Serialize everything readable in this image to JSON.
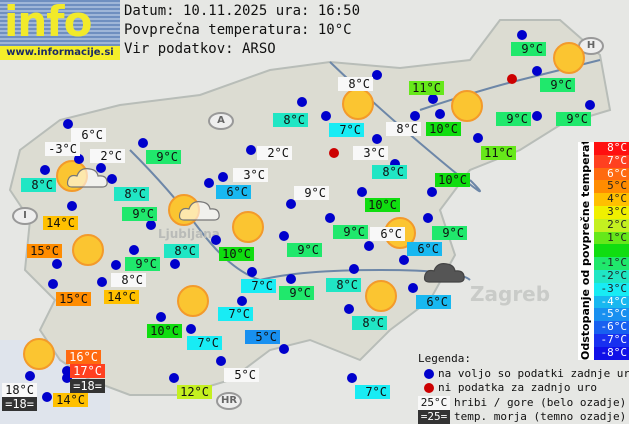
{
  "header": {
    "logo_text": "info",
    "logo_url": "www.informacije.si",
    "date_line": "Datum: 10.11.2025 ura: 16:50",
    "avg_line": "Povprečna temperatura: 10°C",
    "source_line": "Vir podatkov: ARSO"
  },
  "map_labels": {
    "ljubljana": "Ljubljana",
    "zagreb": "Zagreb",
    "austria": "A",
    "italy": "I",
    "croatia": "HR",
    "hungary": "H"
  },
  "colors": {
    "mountain": "#f8f8f8",
    "sea": "#333333",
    "station_available": "#0000cc",
    "station_no_data": "#cc0000",
    "d-5": "#1890f0",
    "d-4": "#18b8f0",
    "d-3": "#18ecf4",
    "d-2": "#20e6c4",
    "d-1": "#20e86c",
    "d0": "#10dd10",
    "d1": "#66e81a",
    "d2": "#c4f020",
    "d4": "#ffc000",
    "d5": "#ff8c00",
    "d6": "#ff6a10",
    "d7": "#ff4020"
  },
  "stations": [
    {
      "t": "6°C",
      "c": "mountain"
    },
    {
      "t": "-3°C",
      "c": "mountain"
    },
    {
      "t": "2°C",
      "c": "mountain"
    },
    {
      "t": "8°C",
      "c": "d-2"
    },
    {
      "t": "8°C",
      "c": "d-2"
    },
    {
      "t": "9°C",
      "c": "d-1"
    },
    {
      "t": "2°C",
      "c": "mountain"
    },
    {
      "t": "3°C",
      "c": "mountain"
    },
    {
      "t": "6°C",
      "c": "d-4"
    },
    {
      "t": "9°C",
      "c": "mountain"
    },
    {
      "t": "10°C",
      "c": "d0"
    },
    {
      "t": "10°C",
      "c": "d0"
    },
    {
      "t": "8°C",
      "c": "d-2"
    },
    {
      "t": "3°C",
      "c": "mountain"
    },
    {
      "t": "8°C",
      "c": "mountain"
    },
    {
      "t": "10°C",
      "c": "d0"
    },
    {
      "t": "11°C",
      "c": "d1"
    },
    {
      "t": "8°C",
      "c": "mountain"
    },
    {
      "t": "8°C",
      "c": "d-2"
    },
    {
      "t": "7°C",
      "c": "d-3"
    },
    {
      "t": "11°C",
      "c": "d1"
    },
    {
      "t": "9°C",
      "c": "d-1"
    },
    {
      "t": "9°C",
      "c": "d-1"
    },
    {
      "t": "9°C",
      "c": "d-1"
    },
    {
      "t": "9°C",
      "c": "d-1"
    },
    {
      "t": "14°C",
      "c": "d4"
    },
    {
      "t": "9°C",
      "c": "d-1"
    },
    {
      "t": "10°C",
      "c": "d0"
    },
    {
      "t": "8°C",
      "c": "d-2"
    },
    {
      "t": "9°C",
      "c": "d-1"
    },
    {
      "t": "9°C",
      "c": "d-1"
    },
    {
      "t": "15°C",
      "c": "d5"
    },
    {
      "t": "8°C",
      "c": "mountain"
    },
    {
      "t": "15°C",
      "c": "d5"
    },
    {
      "t": "14°C",
      "c": "d4"
    },
    {
      "t": "7°C",
      "c": "d-3"
    },
    {
      "t": "9°C",
      "c": "d-1"
    },
    {
      "t": "7°C",
      "c": "d-3"
    },
    {
      "t": "10°C",
      "c": "d0"
    },
    {
      "t": "7°C",
      "c": "d-3"
    },
    {
      "t": "5°C",
      "c": "d-5"
    },
    {
      "t": "5°C",
      "c": "mountain"
    },
    {
      "t": "12°C",
      "c": "d2"
    },
    {
      "t": "16°C",
      "c": "d6"
    },
    {
      "t": "17°C",
      "c": "d7"
    },
    {
      "t": "=18=",
      "c": "sea"
    },
    {
      "t": "18°C",
      "c": "mountain"
    },
    {
      "t": "=18=",
      "c": "sea"
    },
    {
      "t": "14°C",
      "c": "d4"
    },
    {
      "t": "9°C",
      "c": "d-1"
    },
    {
      "t": "6°C",
      "c": "mountain"
    },
    {
      "t": "9°C",
      "c": "d-1"
    },
    {
      "t": "6°C",
      "c": "d-4"
    },
    {
      "t": "8°C",
      "c": "d-2"
    },
    {
      "t": "6°C",
      "c": "d-4"
    },
    {
      "t": "8°C",
      "c": "d-2"
    },
    {
      "t": "7°C",
      "c": "d-3"
    }
  ],
  "scale": {
    "title": "Odstopanje od povprečne temperature:",
    "steps": [
      {
        "label": "8°C",
        "color": "#ff1010"
      },
      {
        "label": "7°C",
        "color": "#ff4020"
      },
      {
        "label": "6°C",
        "color": "#ff6a10"
      },
      {
        "label": "5°C",
        "color": "#ff8c00"
      },
      {
        "label": "4°C",
        "color": "#ffc000"
      },
      {
        "label": "3°C",
        "color": "#f0f000"
      },
      {
        "label": "2°C",
        "color": "#c4f020"
      },
      {
        "label": "1°C",
        "color": "#66e81a"
      },
      {
        "label": "",
        "color": "#10dd10"
      },
      {
        "label": "-1°C",
        "color": "#20e86c"
      },
      {
        "label": "-2°C",
        "color": "#20e6c4"
      },
      {
        "label": "-3°C",
        "color": "#18ecf4"
      },
      {
        "label": "-4°C",
        "color": "#18b8f0"
      },
      {
        "label": "-5°C",
        "color": "#1890f0"
      },
      {
        "label": "-6°C",
        "color": "#1860f0"
      },
      {
        "label": "-7°C",
        "color": "#1830f0"
      },
      {
        "label": "-8°C",
        "color": "#1010e8"
      }
    ]
  },
  "legend": {
    "title": "Legenda:",
    "available": "na voljo so podatki zadnje ure",
    "no_data": "ni podatka za zadnjo uro",
    "mountain_sample": "25°C",
    "mountain_text": "hribi / gore (belo ozadje)",
    "sea_sample": "=25=",
    "sea_text": "temp. morja (temno ozadje)"
  }
}
